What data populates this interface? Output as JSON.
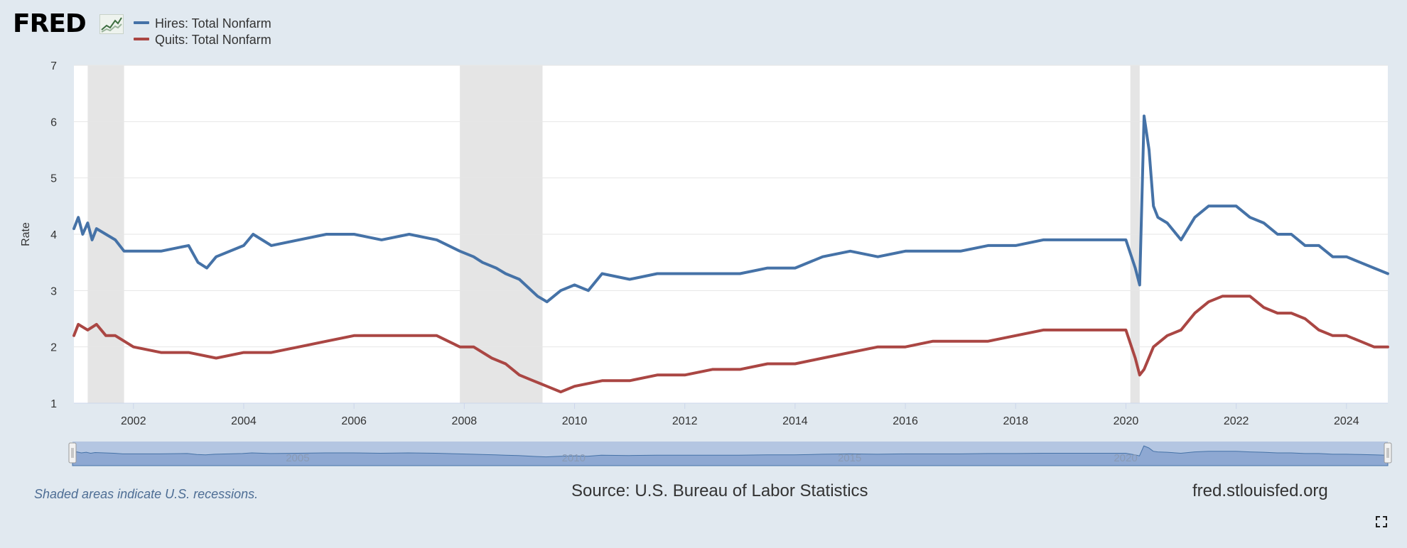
{
  "brand": {
    "logo_text": "FRED",
    "logo_icon": "trend-chart-icon"
  },
  "legend": [
    {
      "label": "Hires: Total Nonfarm",
      "color": "#4572a7"
    },
    {
      "label": "Quits: Total Nonfarm",
      "color": "#aa4643"
    }
  ],
  "recession_note": "Shaded areas indicate U.S. recessions.",
  "source": "Source: U.S. Bureau of Labor Statistics",
  "site": "fred.stlouisfed.org",
  "fullscreen_icon": "expand-icon",
  "chart_data": {
    "type": "line",
    "title": "",
    "xlabel": "",
    "ylabel": "Rate",
    "ylim": [
      1,
      7
    ],
    "xlim": [
      2000.92,
      2024.75
    ],
    "y_ticks": [
      "1",
      "2",
      "3",
      "4",
      "5",
      "6",
      "7"
    ],
    "x_ticks": [
      "2002",
      "2004",
      "2006",
      "2008",
      "2010",
      "2012",
      "2014",
      "2016",
      "2018",
      "2020",
      "2022",
      "2024"
    ],
    "navigator_labels": [
      "2005",
      "2010",
      "2015",
      "2020"
    ],
    "recessions": [
      [
        2001.17,
        2001.83
      ],
      [
        2007.92,
        2009.42
      ],
      [
        2020.08,
        2020.25
      ]
    ],
    "series": [
      {
        "name": "Hires: Total Nonfarm",
        "color": "#4572a7",
        "x": [
          2000.92,
          2001.0,
          2001.08,
          2001.17,
          2001.25,
          2001.33,
          2001.5,
          2001.67,
          2001.83,
          2002.0,
          2002.5,
          2003.0,
          2003.17,
          2003.33,
          2003.5,
          2004.0,
          2004.17,
          2004.5,
          2005.0,
          2005.5,
          2006.0,
          2006.5,
          2007.0,
          2007.5,
          2007.92,
          2008.17,
          2008.33,
          2008.58,
          2008.75,
          2009.0,
          2009.33,
          2009.5,
          2009.75,
          2010.0,
          2010.25,
          2010.5,
          2011.0,
          2011.5,
          2012.0,
          2012.5,
          2013.0,
          2013.5,
          2014.0,
          2014.5,
          2015.0,
          2015.5,
          2016.0,
          2016.5,
          2017.0,
          2017.5,
          2018.0,
          2018.5,
          2019.0,
          2019.5,
          2020.0,
          2020.17,
          2020.25,
          2020.33,
          2020.42,
          2020.5,
          2020.58,
          2020.75,
          2021.0,
          2021.25,
          2021.5,
          2021.75,
          2022.0,
          2022.25,
          2022.5,
          2022.75,
          2023.0,
          2023.25,
          2023.5,
          2023.75,
          2024.0,
          2024.25,
          2024.5,
          2024.75
        ],
        "values": [
          4.1,
          4.3,
          4.0,
          4.2,
          3.9,
          4.1,
          4.0,
          3.9,
          3.7,
          3.7,
          3.7,
          3.8,
          3.5,
          3.4,
          3.6,
          3.8,
          4.0,
          3.8,
          3.9,
          4.0,
          4.0,
          3.9,
          4.0,
          3.9,
          3.7,
          3.6,
          3.5,
          3.4,
          3.3,
          3.2,
          2.9,
          2.8,
          3.0,
          3.1,
          3.0,
          3.3,
          3.2,
          3.3,
          3.3,
          3.3,
          3.3,
          3.4,
          3.4,
          3.6,
          3.7,
          3.6,
          3.7,
          3.7,
          3.7,
          3.8,
          3.8,
          3.9,
          3.9,
          3.9,
          3.9,
          3.4,
          3.1,
          6.1,
          5.5,
          4.5,
          4.3,
          4.2,
          3.9,
          4.3,
          4.5,
          4.5,
          4.5,
          4.3,
          4.2,
          4.0,
          4.0,
          3.8,
          3.8,
          3.6,
          3.6,
          3.5,
          3.4,
          3.3
        ]
      },
      {
        "name": "Quits: Total Nonfarm",
        "color": "#aa4643",
        "x": [
          2000.92,
          2001.0,
          2001.17,
          2001.33,
          2001.5,
          2001.67,
          2002.0,
          2002.5,
          2003.0,
          2003.5,
          2004.0,
          2004.5,
          2005.0,
          2005.5,
          2006.0,
          2006.5,
          2007.0,
          2007.5,
          2007.92,
          2008.17,
          2008.5,
          2008.75,
          2009.0,
          2009.25,
          2009.5,
          2009.75,
          2010.0,
          2010.5,
          2011.0,
          2011.5,
          2012.0,
          2012.5,
          2013.0,
          2013.5,
          2014.0,
          2014.5,
          2015.0,
          2015.5,
          2016.0,
          2016.5,
          2017.0,
          2017.5,
          2018.0,
          2018.5,
          2019.0,
          2019.5,
          2020.0,
          2020.17,
          2020.25,
          2020.33,
          2020.5,
          2020.75,
          2021.0,
          2021.25,
          2021.5,
          2021.75,
          2022.0,
          2022.25,
          2022.5,
          2022.75,
          2023.0,
          2023.25,
          2023.5,
          2023.75,
          2024.0,
          2024.25,
          2024.5,
          2024.75
        ],
        "values": [
          2.2,
          2.4,
          2.3,
          2.4,
          2.2,
          2.2,
          2.0,
          1.9,
          1.9,
          1.8,
          1.9,
          1.9,
          2.0,
          2.1,
          2.2,
          2.2,
          2.2,
          2.2,
          2.0,
          2.0,
          1.8,
          1.7,
          1.5,
          1.4,
          1.3,
          1.2,
          1.3,
          1.4,
          1.4,
          1.5,
          1.5,
          1.6,
          1.6,
          1.7,
          1.7,
          1.8,
          1.9,
          2.0,
          2.0,
          2.1,
          2.1,
          2.1,
          2.2,
          2.3,
          2.3,
          2.3,
          2.3,
          1.8,
          1.5,
          1.6,
          2.0,
          2.2,
          2.3,
          2.6,
          2.8,
          2.9,
          2.9,
          2.9,
          2.7,
          2.6,
          2.6,
          2.5,
          2.3,
          2.2,
          2.2,
          2.1,
          2.0,
          2.0
        ]
      }
    ]
  }
}
